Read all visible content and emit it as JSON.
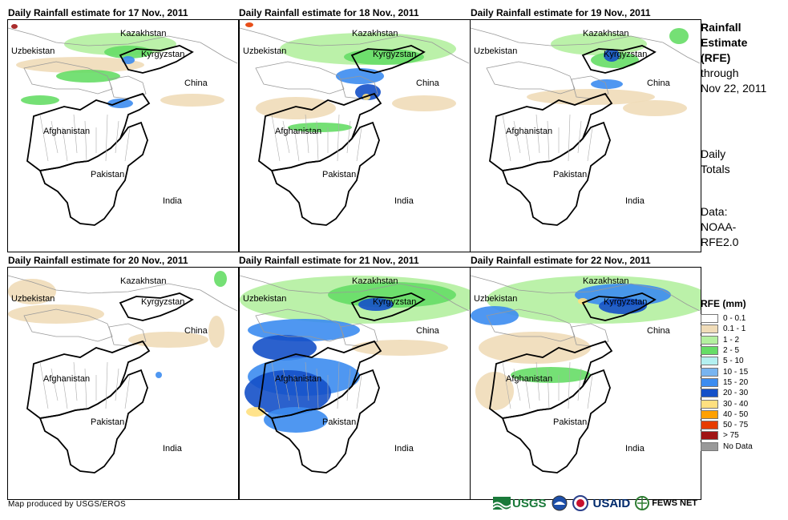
{
  "panels": [
    {
      "title": "Daily Rainfall estimate for 17 Nov., 2011"
    },
    {
      "title": "Daily Rainfall estimate for 18 Nov., 2011"
    },
    {
      "title": "Daily Rainfall estimate for 19 Nov., 2011"
    },
    {
      "title": "Daily Rainfall estimate for 20 Nov., 2011"
    },
    {
      "title": "Daily Rainfall estimate for 21 Nov., 2011"
    },
    {
      "title": "Daily Rainfall estimate for 22 Nov., 2011"
    }
  ],
  "map_labels": {
    "kazakhstan": "Kazakhstan",
    "uzbekistan": "Uzbekistan",
    "kyrgyzstan": "Kyrgyzstan",
    "china": "China",
    "afghanistan": "Afghanistan",
    "pakistan": "Pakistan",
    "india": "India"
  },
  "side_text": {
    "title_line1": "Rainfall",
    "title_line2": "Estimate",
    "title_line3": "(RFE)",
    "line4": "through",
    "line5": "Nov 22, 2011",
    "daily1": "Daily",
    "daily2": "Totals",
    "data1": "Data:",
    "data2": "NOAA-",
    "data3": "RFE2.0"
  },
  "legend": {
    "title": "RFE (mm)",
    "items": [
      {
        "label": "0 - 0.1",
        "color": "#ffffff"
      },
      {
        "label": "0.1 - 1",
        "color": "#f0dcb8"
      },
      {
        "label": "1 - 2",
        "color": "#b4f0a0"
      },
      {
        "label": "2 - 5",
        "color": "#66dd66"
      },
      {
        "label": "5 - 10",
        "color": "#b4f0f0"
      },
      {
        "label": "10 - 15",
        "color": "#78b4f0"
      },
      {
        "label": "15 - 20",
        "color": "#3c8cf0"
      },
      {
        "label": "20 - 30",
        "color": "#1450c8"
      },
      {
        "label": "30 - 40",
        "color": "#ffe080"
      },
      {
        "label": "40 - 50",
        "color": "#ffa000"
      },
      {
        "label": "50 - 75",
        "color": "#e63c00"
      },
      {
        "label": "> 75",
        "color": "#a01414"
      },
      {
        "label": "No Data",
        "color": "#999999"
      }
    ]
  },
  "credit": "Map produced by USGS/EROS",
  "logos": {
    "usgs": "USGS",
    "usaid": "USAID",
    "fews": "FEWS NET"
  }
}
